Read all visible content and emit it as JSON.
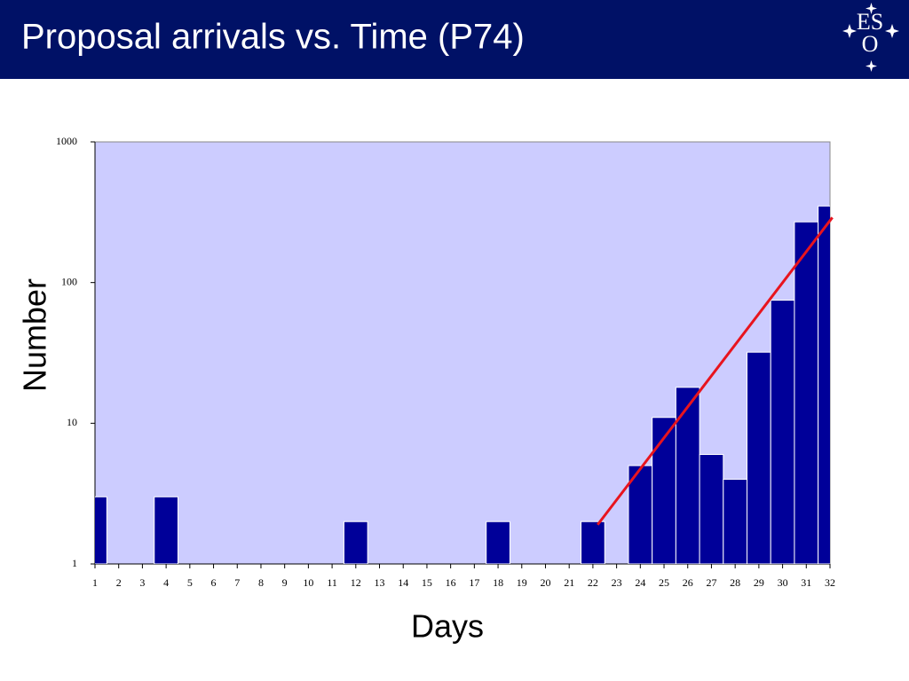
{
  "header": {
    "title": "Proposal arrivals vs. Time (P74)",
    "logo": {
      "line1": "ES",
      "line2": "O"
    }
  },
  "chart_data": {
    "type": "bar",
    "x_label": "Days",
    "y_label": "Number",
    "x": [
      1,
      2,
      3,
      4,
      5,
      6,
      7,
      8,
      9,
      10,
      11,
      12,
      13,
      14,
      15,
      16,
      17,
      18,
      19,
      20,
      21,
      22,
      23,
      24,
      25,
      26,
      27,
      28,
      29,
      30,
      31,
      32
    ],
    "values": [
      3,
      null,
      null,
      3,
      null,
      null,
      null,
      null,
      null,
      null,
      null,
      2,
      null,
      null,
      null,
      null,
      null,
      2,
      null,
      null,
      null,
      2,
      null,
      5,
      11,
      18,
      6,
      4,
      32,
      75,
      270,
      350
    ],
    "color": "#000099",
    "xlim": [
      1,
      32
    ],
    "xticks": [
      1,
      2,
      3,
      4,
      5,
      6,
      7,
      8,
      9,
      10,
      11,
      12,
      13,
      14,
      15,
      16,
      17,
      18,
      19,
      20,
      21,
      22,
      23,
      24,
      25,
      26,
      27,
      28,
      29,
      30,
      31,
      32
    ],
    "ylim": [
      1,
      1000
    ],
    "yticks": [
      1,
      10,
      100,
      1000
    ],
    "yscale": "log",
    "background": "#ccccff",
    "trend": {
      "x": [
        22.2,
        32.1
      ],
      "values": [
        1.9,
        290
      ],
      "color": "#e8141e"
    }
  }
}
